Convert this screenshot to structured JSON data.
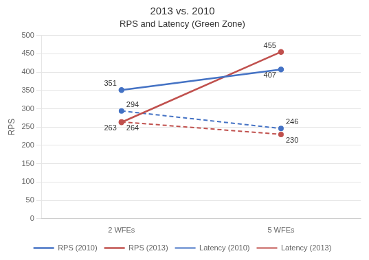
{
  "chart_data": {
    "type": "line",
    "title": "2013 vs. 2010",
    "subtitle": "RPS and Latency (Green Zone)",
    "y_label": "RPS",
    "categories": [
      "2 WFEs",
      "5 WFEs"
    ],
    "series": [
      {
        "name": "RPS (2010)",
        "color": "#4472C4",
        "line_style": "solid",
        "values": [
          351,
          407
        ]
      },
      {
        "name": "RPS (2013)",
        "color": "#C0504D",
        "line_style": "solid",
        "values": [
          263,
          455
        ]
      },
      {
        "name": "Latency (2010)",
        "color": "#4472C4",
        "line_style": "dashed",
        "values": [
          294,
          246
        ]
      },
      {
        "name": "Latency (2013)",
        "color": "#C0504D",
        "line_style": "dashed",
        "values": [
          264,
          230
        ]
      }
    ],
    "ylim": [
      0,
      500
    ],
    "yticks": [
      0,
      50,
      100,
      150,
      200,
      250,
      300,
      350,
      400,
      450,
      500
    ],
    "grid": true,
    "legend": "bottom",
    "data_labels": true
  }
}
